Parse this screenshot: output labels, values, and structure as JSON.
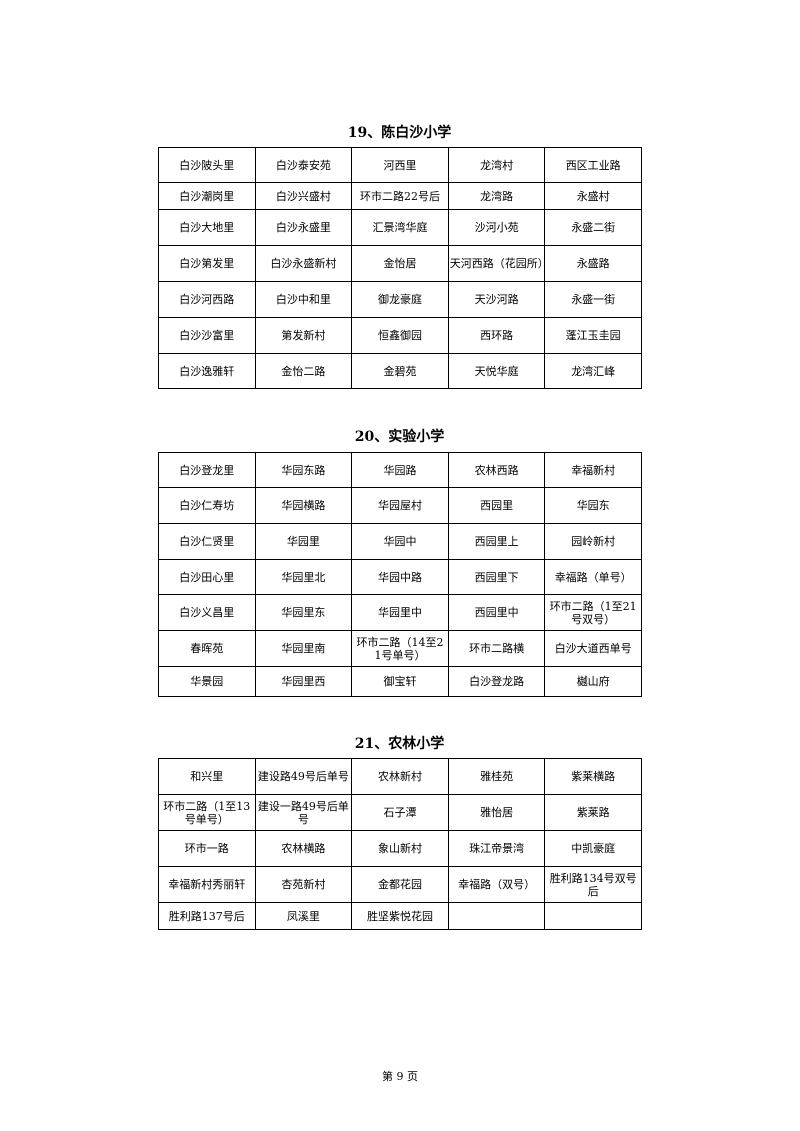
{
  "sections": [
    {
      "title": "19、陈白沙小学",
      "rows": [
        [
          "白沙陂头里",
          "白沙泰安苑",
          "河西里",
          "龙湾村",
          "西区工业路"
        ],
        [
          "白沙潮岗里",
          "白沙兴盛村",
          "环市二路22号后",
          "龙湾路",
          "永盛村"
        ],
        [
          "白沙大地里",
          "白沙永盛里",
          "汇景湾华庭",
          "沙河小苑",
          "永盛二街"
        ],
        [
          "白沙第发里",
          "白沙永盛新村",
          "金怡居",
          "天河西路（花园所）",
          "永盛路"
        ],
        [
          "白沙河西路",
          "白沙中和里",
          "御龙豪庭",
          "天沙河路",
          "永盛一街"
        ],
        [
          "白沙沙富里",
          "第发新村",
          "恒鑫御园",
          "西环路",
          "蓬江玉圭园"
        ],
        [
          "白沙逸雅轩",
          "金怡二路",
          "金碧苑",
          "天悦华庭",
          "龙湾汇峰"
        ]
      ]
    },
    {
      "title": "20、实验小学",
      "rows": [
        [
          "白沙登龙里",
          "华园东路",
          "华园路",
          "农林西路",
          "幸福新村"
        ],
        [
          "白沙仁寿坊",
          "华园横路",
          "华园屋村",
          "西园里",
          "华园东"
        ],
        [
          "白沙仁贤里",
          "华园里",
          "华园中",
          "西园里上",
          "园岭新村"
        ],
        [
          "白沙田心里",
          "华园里北",
          "华园中路",
          "西园里下",
          "幸福路（单号）"
        ],
        [
          "白沙义昌里",
          "华园里东",
          "华园里中",
          "西园里中",
          "环市二路（1至21号双号）"
        ],
        [
          "春晖苑",
          "华园里南",
          "环市二路（14至21号单号）",
          "环市二路横",
          "白沙大道西单号"
        ],
        [
          "华景园",
          "华园里西",
          "御宝轩",
          "白沙登龙路",
          "樾山府"
        ]
      ]
    },
    {
      "title": "21、农林小学",
      "rows": [
        [
          "和兴里",
          "建设路49号后单号",
          "农林新村",
          "雅桂苑",
          "紫莱横路"
        ],
        [
          "环市二路（1至13号单号）",
          "建设一路49号后单号",
          "石子潭",
          "雅怡居",
          "紫莱路"
        ],
        [
          "环市一路",
          "农林横路",
          "象山新村",
          "珠江帝景湾",
          "中凯豪庭"
        ],
        [
          "幸福新村秀丽轩",
          "杏苑新村",
          "金都花园",
          "幸福路（双号）",
          "胜利路134号双号后"
        ],
        [
          "胜利路137号后",
          "凤溪里",
          "胜坚紫悦花园",
          "",
          ""
        ]
      ]
    }
  ],
  "footer": "第 9 页"
}
